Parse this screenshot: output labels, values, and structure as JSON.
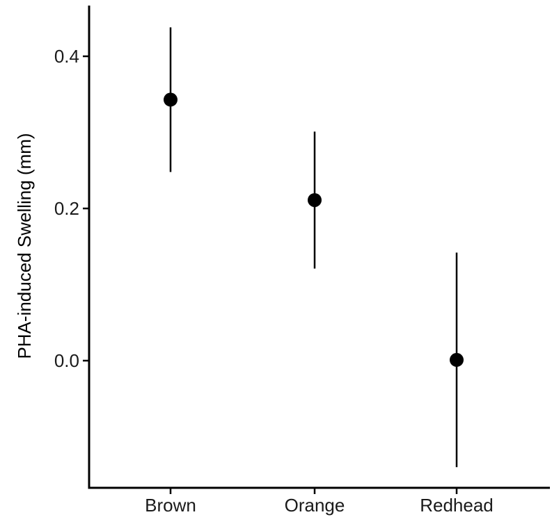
{
  "chart_data": {
    "type": "scatter",
    "title": "",
    "xlabel": "",
    "ylabel": "PHA-induced Swelling (mm)",
    "categories": [
      "Brown",
      "Orange",
      "Redhead"
    ],
    "series": [
      {
        "values": [
          0.343,
          0.211,
          0.001
        ],
        "error_low": [
          0.248,
          0.121,
          -0.14
        ],
        "error_high": [
          0.438,
          0.301,
          0.142
        ]
      }
    ],
    "y_ticks": [
      0.0,
      0.2,
      0.4
    ],
    "y_tick_labels": [
      "0.0",
      "0.2",
      "0.4"
    ],
    "ylim": [
      -0.165,
      0.465
    ],
    "grid": false,
    "legend": "none",
    "colors": {
      "point": "#000000",
      "axis": "#000000",
      "text": "#1a1a1a"
    }
  }
}
